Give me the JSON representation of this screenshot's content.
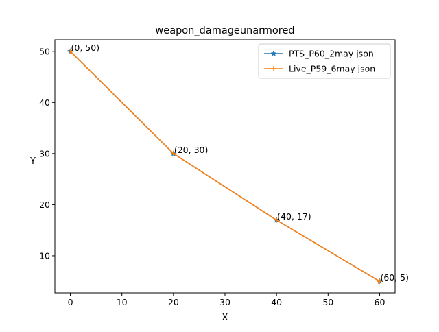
{
  "chart_data": {
    "type": "line",
    "title": "weapon_damageunarmored",
    "xlabel": "X",
    "ylabel": "Y",
    "xlim": [
      -3,
      63
    ],
    "ylim": [
      2.75,
      52.25
    ],
    "xticks": [
      0,
      10,
      20,
      30,
      40,
      50,
      60
    ],
    "yticks": [
      10,
      20,
      30,
      40,
      50
    ],
    "grid": false,
    "legend_position": "top-right",
    "series": [
      {
        "name": "PTS_P60_2may json",
        "color": "#1f77b4",
        "marker": "star",
        "x": [
          0,
          20,
          40,
          60
        ],
        "y": [
          50,
          30,
          17,
          5
        ]
      },
      {
        "name": "Live_P59_6may json",
        "color": "#ff7f0e",
        "marker": "plus",
        "x": [
          0,
          20,
          40,
          60
        ],
        "y": [
          50,
          30,
          17,
          5
        ]
      }
    ],
    "annotations": [
      {
        "x": 0,
        "y": 50,
        "text": "(0, 50)"
      },
      {
        "x": 20,
        "y": 30,
        "text": "(20, 30)"
      },
      {
        "x": 40,
        "y": 17,
        "text": "(40, 17)"
      },
      {
        "x": 60,
        "y": 5,
        "text": "(60, 5)"
      }
    ]
  }
}
